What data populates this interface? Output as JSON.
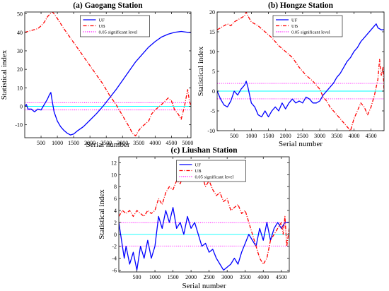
{
  "chart_data": [
    {
      "type": "line",
      "title": "(a) Gaogang Station",
      "xlabel": "Serial number",
      "ylabel": "Statistical index",
      "xlim": [
        0,
        5100
      ],
      "ylim": [
        -17,
        51
      ],
      "xticks": [
        500,
        1000,
        1500,
        2000,
        2500,
        3000,
        3500,
        4000,
        4500,
        5000
      ],
      "yticks": [
        -10,
        0,
        10,
        20,
        30,
        40,
        50
      ],
      "xtick_labels": [
        "500",
        "1000",
        "1500",
        "2000",
        "2500",
        "3000",
        "3500",
        "4000",
        "4500",
        "5000"
      ],
      "ytick_labels": [
        "-10",
        "0",
        "10",
        "20",
        "30",
        "40",
        "50"
      ],
      "significance_levels": [
        1.96,
        -1.96
      ],
      "zero_line": 0,
      "legend_position": "top-center",
      "legend": [
        "UF",
        "UB",
        "0.05 significant level"
      ],
      "series": [
        {
          "name": "UF",
          "color": "#0000ff",
          "dash": "solid",
          "x": [
            0,
            50,
            100,
            200,
            300,
            400,
            500,
            600,
            700,
            750,
            800,
            850,
            900,
            1000,
            1100,
            1200,
            1300,
            1400,
            1500,
            1600,
            1800,
            2000,
            2200,
            2400,
            2600,
            2800,
            3000,
            3200,
            3400,
            3600,
            3800,
            4000,
            4200,
            4400,
            4600,
            4800,
            5000,
            5100
          ],
          "y": [
            0,
            1,
            -1.5,
            -1.5,
            -3,
            -1.5,
            -2,
            1,
            4,
            6,
            7.5,
            2,
            -3,
            -8,
            -11,
            -13,
            -14.5,
            -15.5,
            -15,
            -13.5,
            -11,
            -7.5,
            -4,
            0,
            4.5,
            9,
            14,
            19,
            24,
            28,
            32,
            35,
            37.5,
            39,
            40,
            40.5,
            40,
            40
          ]
        },
        {
          "name": "UB",
          "color": "#ff0000",
          "dash": "dashdot",
          "x": [
            0,
            100,
            200,
            300,
            400,
            500,
            600,
            700,
            800,
            850,
            900,
            1000,
            1200,
            1400,
            1600,
            1800,
            2000,
            2200,
            2400,
            2600,
            2800,
            3000,
            3200,
            3300,
            3400,
            3500,
            3600,
            3800,
            3900,
            4000,
            4200,
            4400,
            4500,
            4600,
            4700,
            4800,
            4900,
            5000,
            5050,
            5100
          ],
          "y": [
            40,
            40.5,
            41,
            41.5,
            42,
            43.5,
            45.5,
            48.5,
            50.5,
            51,
            50,
            47.5,
            42,
            37,
            32,
            27,
            22,
            17,
            12,
            6,
            1,
            -5,
            -11,
            -14.5,
            -16,
            -13,
            -11,
            -8,
            -4,
            -2,
            1,
            4.5,
            3,
            -2,
            -4,
            -7,
            0,
            9,
            3,
            0
          ]
        },
        {
          "name": "0.05 significant level",
          "color": "#ff00ff",
          "dash": "dotted",
          "y": [
            1.96,
            -1.96
          ]
        }
      ]
    },
    {
      "type": "line",
      "title": "(b) Hongze Station",
      "xlabel": "Serial number",
      "ylabel": "Statistical index",
      "xlim": [
        0,
        4880
      ],
      "ylim": [
        -10,
        20
      ],
      "xticks": [
        500,
        1000,
        1500,
        2000,
        2500,
        3000,
        3500,
        4000,
        4500
      ],
      "yticks": [
        -10,
        -5,
        0,
        5,
        10,
        15,
        20
      ],
      "xtick_labels": [
        "500",
        "1000",
        "1500",
        "2000",
        "2500",
        "3000",
        "3500",
        "4000",
        "4500"
      ],
      "ytick_labels": [
        "-10",
        "-5",
        "0",
        "5",
        "10",
        "15",
        "20"
      ],
      "significance_levels": [
        1.96,
        -1.96
      ],
      "zero_line": 0,
      "legend_position": "top-center",
      "legend": [
        "UF",
        "UB",
        "0.05 significant level"
      ],
      "series": [
        {
          "name": "UF",
          "color": "#0000ff",
          "dash": "solid",
          "x": [
            0,
            100,
            200,
            300,
            400,
            500,
            600,
            700,
            800,
            850,
            900,
            1000,
            1100,
            1200,
            1300,
            1400,
            1500,
            1600,
            1700,
            1800,
            1900,
            2000,
            2100,
            2200,
            2300,
            2400,
            2500,
            2600,
            2700,
            2800,
            2900,
            3000,
            3100,
            3200,
            3300,
            3400,
            3500,
            3600,
            3700,
            3800,
            3900,
            4000,
            4100,
            4200,
            4300,
            4400,
            4500,
            4600,
            4650,
            4700,
            4800,
            4880
          ],
          "y": [
            0,
            -2,
            -3.5,
            -4,
            -2.5,
            0,
            -1,
            0.5,
            1.5,
            2.5,
            1,
            -3,
            -4,
            -6,
            -6.5,
            -5,
            -6.5,
            -5,
            -4,
            -5,
            -3,
            -4.5,
            -3,
            -2,
            -3,
            -2.5,
            -3,
            -1.5,
            -2,
            -3,
            -3,
            -2.5,
            -1,
            0,
            1,
            2,
            3.5,
            4.5,
            6,
            7.5,
            8.5,
            10,
            11,
            12.5,
            13.5,
            14.5,
            15.5,
            16.5,
            17,
            16,
            15.5,
            15.5
          ]
        },
        {
          "name": "UB",
          "color": "#ff0000",
          "dash": "dashdot",
          "x": [
            0,
            100,
            200,
            300,
            400,
            500,
            600,
            700,
            800,
            850,
            900,
            1000,
            1200,
            1400,
            1600,
            1800,
            2000,
            2200,
            2400,
            2600,
            2800,
            3000,
            3100,
            3200,
            3300,
            3400,
            3500,
            3600,
            3700,
            3800,
            3900,
            4000,
            4100,
            4200,
            4300,
            4400,
            4500,
            4600,
            4700,
            4750,
            4800,
            4850,
            4880
          ],
          "y": [
            15.5,
            16,
            16.5,
            17,
            16.5,
            17.5,
            18,
            18.5,
            19,
            20,
            19,
            17.5,
            16.5,
            15,
            13.5,
            11.5,
            10,
            8.5,
            6,
            4,
            2.5,
            0.5,
            -1.5,
            -2.5,
            -4,
            -5,
            -6,
            -7,
            -8,
            -9,
            -10,
            -7,
            -5,
            -3,
            -4,
            -6,
            -4,
            -1,
            3,
            8,
            4,
            6,
            0
          ]
        },
        {
          "name": "0.05 significant level",
          "color": "#ff00ff",
          "dash": "dotted",
          "y": [
            1.96,
            -1.96
          ]
        }
      ]
    },
    {
      "type": "line",
      "title": "(c) Liushan Station",
      "xlabel": "Serial number",
      "ylabel": "Statistical index",
      "xlim": [
        0,
        4720
      ],
      "ylim": [
        -6.3,
        13
      ],
      "xticks": [
        500,
        1000,
        1500,
        2000,
        2500,
        3000,
        3500,
        4000,
        4500
      ],
      "yticks": [
        -6,
        -4,
        -2,
        0,
        2,
        4,
        6,
        8,
        10,
        12
      ],
      "xtick_labels": [
        "500",
        "1000",
        "1500",
        "2000",
        "2500",
        "3000",
        "3500",
        "4000",
        "4500"
      ],
      "ytick_labels": [
        "-6",
        "-4",
        "-2",
        "0",
        "2",
        "4",
        "6",
        "8",
        "10",
        "12"
      ],
      "significance_levels": [
        1.96,
        -1.96
      ],
      "zero_line": 0,
      "legend_position": "top-center",
      "legend": [
        "UF",
        "UB",
        "0.05 significant level"
      ],
      "series": [
        {
          "name": "UF",
          "color": "#0000ff",
          "dash": "solid",
          "x": [
            0,
            50,
            100,
            150,
            200,
            300,
            400,
            500,
            600,
            700,
            800,
            900,
            1000,
            1100,
            1200,
            1300,
            1400,
            1500,
            1600,
            1700,
            1800,
            1900,
            2000,
            2100,
            2200,
            2300,
            2400,
            2500,
            2600,
            2700,
            2800,
            2900,
            3000,
            3100,
            3200,
            3300,
            3400,
            3500,
            3600,
            3700,
            3800,
            3900,
            4000,
            4100,
            4200,
            4300,
            4400,
            4500,
            4600,
            4720
          ],
          "y": [
            2,
            0,
            -2,
            -4,
            -2,
            -5,
            -3,
            -6,
            -2,
            -4,
            -1,
            -4,
            -2,
            3,
            1,
            4,
            2,
            4.5,
            1,
            2,
            0,
            3,
            1,
            2,
            0,
            -2,
            -1.5,
            -3,
            -2.5,
            -4,
            -5,
            -6,
            -5.5,
            -5,
            -4,
            -5,
            -3,
            -1.5,
            0,
            -1,
            -2,
            1,
            -1,
            2,
            -1,
            1,
            2,
            1,
            2,
            2
          ]
        },
        {
          "name": "UB",
          "color": "#ff0000",
          "dash": "dashdot",
          "x": [
            0,
            50,
            100,
            200,
            300,
            400,
            500,
            600,
            700,
            800,
            900,
            1000,
            1100,
            1200,
            1300,
            1400,
            1500,
            1600,
            1700,
            1800,
            1900,
            2000,
            2100,
            2200,
            2300,
            2400,
            2500,
            2600,
            2700,
            2800,
            2900,
            3000,
            3100,
            3200,
            3300,
            3400,
            3500,
            3600,
            3700,
            3800,
            3900,
            4000,
            4100,
            4200,
            4300,
            4400,
            4500,
            4550,
            4600,
            4650,
            4720
          ],
          "y": [
            3,
            3.5,
            4,
            3.5,
            4,
            3,
            4,
            3.5,
            3,
            4,
            3.5,
            4,
            6,
            5,
            7,
            8,
            7.5,
            9,
            8.5,
            10,
            9,
            11,
            12.5,
            11,
            10,
            8,
            9,
            7.5,
            6.5,
            7,
            5.5,
            6,
            4,
            4.5,
            5,
            3.5,
            4,
            2,
            0,
            -2,
            -4,
            -5,
            -4,
            -1,
            0,
            1,
            2,
            0,
            3,
            -2,
            1
          ]
        },
        {
          "name": "0.05 significant level",
          "color": "#ff00ff",
          "dash": "dotted",
          "y": [
            1.96,
            -1.96
          ]
        }
      ]
    }
  ]
}
